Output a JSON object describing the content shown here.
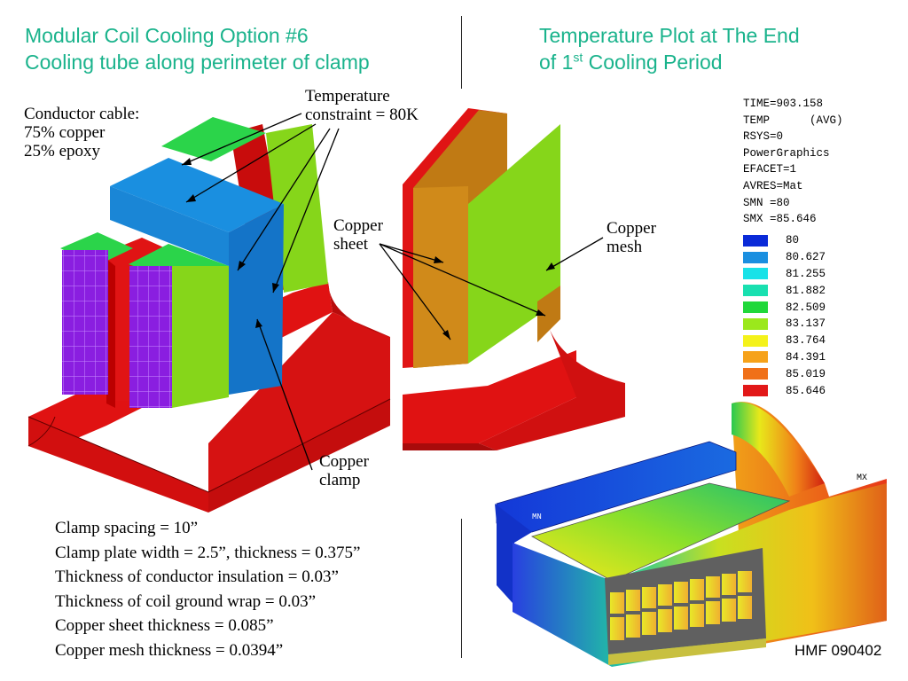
{
  "left_title": {
    "line1": "Modular Coil Cooling Option #6",
    "line2": "Cooling tube along perimeter of clamp"
  },
  "right_title": {
    "line1": "Temperature Plot at The End",
    "line2_pre": "of 1",
    "line2_sup": "st",
    "line2_post": " Cooling Period"
  },
  "labels": {
    "conductor": [
      "Conductor cable:",
      "75% copper",
      "25%  epoxy"
    ],
    "temperature": [
      "Temperature",
      "constraint = 80K"
    ],
    "copper_sheet": [
      "Copper",
      "sheet"
    ],
    "copper_mesh": [
      "Copper",
      "mesh"
    ],
    "copper_clamp": [
      "Copper",
      "clamp"
    ]
  },
  "specs": [
    "Clamp spacing = 10”",
    "Clamp plate width = 2.5”, thickness = 0.375”",
    "Thickness of conductor insulation = 0.03”",
    "Thickness of coil ground wrap = 0.03”",
    "Copper sheet thickness = 0.085”",
    "Copper mesh thickness = 0.0394”"
  ],
  "ansys_info": [
    "TIME=903.158",
    "TEMP      (AVG)",
    "RSYS=0",
    "PowerGraphics",
    "EFACET=1",
    "AVRES=Mat",
    "SMN =80",
    "SMX =85.646"
  ],
  "legend": [
    {
      "value": "80",
      "color": "#0a2ad8"
    },
    {
      "value": "80.627",
      "color": "#1a8fe0"
    },
    {
      "value": "81.255",
      "color": "#18e2e8"
    },
    {
      "value": "81.882",
      "color": "#18e0b0"
    },
    {
      "value": "82.509",
      "color": "#20d83a"
    },
    {
      "value": "83.137",
      "color": "#9be81c"
    },
    {
      "value": "83.764",
      "color": "#f4f21a"
    },
    {
      "value": "84.391",
      "color": "#f6a21a"
    },
    {
      "value": "85.019",
      "color": "#f07018"
    },
    {
      "value": "85.646",
      "color": "#e21818"
    }
  ],
  "plot_markers": {
    "min": "MN",
    "max": "MX"
  },
  "footer": "HMF 090402"
}
